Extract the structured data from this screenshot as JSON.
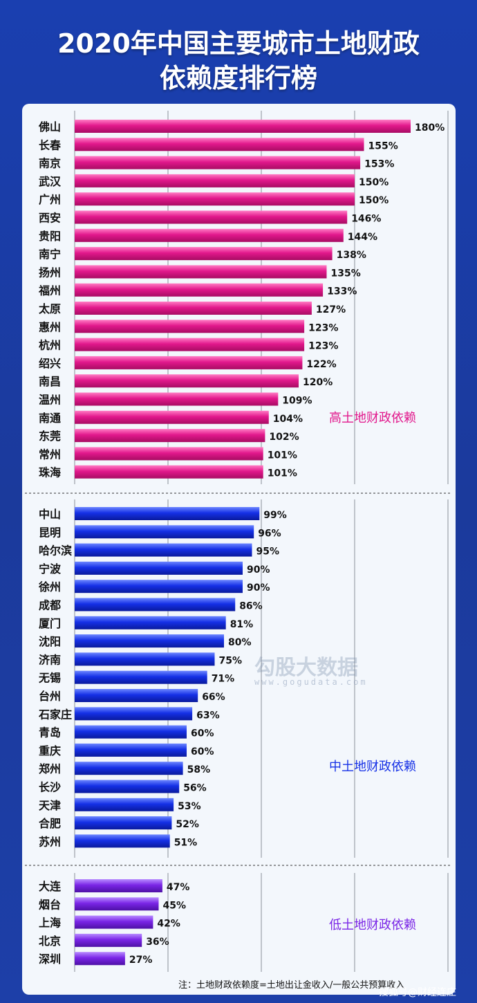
{
  "title_line1": "2020年中国主要城市土地财政",
  "title_line2": "依赖度排行榜",
  "note": "注：土地财政依赖度=土地出让金收入/一般公共预算收入",
  "watermark": "勾股大数据",
  "watermark_url": "www.gogudata.com",
  "credit": "搜狐号@财经连庄",
  "colors": {
    "high": "#e2188c",
    "mid": "#1530e6",
    "low": "#7a25e6"
  },
  "chart_data": {
    "type": "bar",
    "orientation": "horizontal",
    "unit": "%",
    "groups": [
      {
        "label": "高土地财政依赖",
        "color": "#e2188c",
        "categories": [
          "佛山",
          "长春",
          "南京",
          "武汉",
          "广州",
          "西安",
          "贵阳",
          "南宁",
          "扬州",
          "福州",
          "太原",
          "惠州",
          "杭州",
          "绍兴",
          "南昌",
          "温州",
          "南通",
          "东莞",
          "常州",
          "珠海"
        ],
        "values": [
          180,
          155,
          153,
          150,
          150,
          146,
          144,
          138,
          135,
          133,
          127,
          123,
          123,
          122,
          120,
          109,
          104,
          102,
          101,
          101
        ]
      },
      {
        "label": "中土地财政依赖",
        "color": "#1530e6",
        "categories": [
          "中山",
          "昆明",
          "哈尔滨",
          "宁波",
          "徐州",
          "成都",
          "厦门",
          "沈阳",
          "济南",
          "无锡",
          "台州",
          "石家庄",
          "青岛",
          "重庆",
          "郑州",
          "长沙",
          "天津",
          "合肥",
          "苏州"
        ],
        "values": [
          99,
          96,
          95,
          90,
          90,
          86,
          81,
          80,
          75,
          71,
          66,
          63,
          60,
          60,
          58,
          56,
          53,
          52,
          51
        ]
      },
      {
        "label": "低土地财政依赖",
        "color": "#7a25e6",
        "categories": [
          "大连",
          "烟台",
          "上海",
          "北京",
          "深圳"
        ],
        "values": [
          47,
          45,
          42,
          36,
          27
        ]
      }
    ],
    "xlim": [
      0,
      200
    ],
    "grid": true,
    "legend": "none"
  }
}
